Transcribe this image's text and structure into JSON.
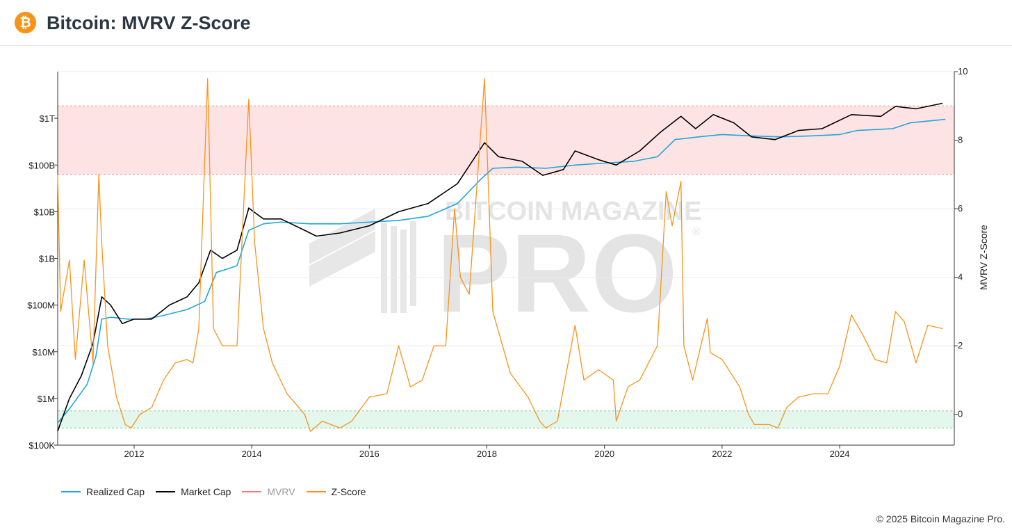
{
  "header": {
    "title": "Bitcoin: MVRV Z-Score",
    "logo_symbol": "₿",
    "logo_color": "#f7931a"
  },
  "watermark": {
    "line1": "BITCOIN MAGAZINE",
    "line2": "PRO",
    "mark": "®"
  },
  "legend": [
    {
      "label": "Realized Cap",
      "color": "#1ea7dc"
    },
    {
      "label": "Market Cap",
      "color": "#000000"
    },
    {
      "label": "MVRV",
      "color": "#f08080"
    },
    {
      "label": "Z-Score",
      "color": "#f7931a"
    }
  ],
  "footer": {
    "copyright": "© 2025 Bitcoin Magazine Pro."
  },
  "chart_data": {
    "type": "line",
    "x_axis": {
      "ticks": [
        "2012",
        "2014",
        "2016",
        "2018",
        "2020",
        "2022",
        "2024"
      ],
      "range": [
        2010.7,
        2025.95
      ]
    },
    "y_left": {
      "scale": "log",
      "ticks": [
        "$100K",
        "$1M",
        "$10M",
        "$100M",
        "$1B",
        "$10B",
        "$100B",
        "$1T"
      ],
      "range": [
        100000,
        10000000000000
      ]
    },
    "y_right": {
      "label": "MVRV Z-Score",
      "ticks": [
        0,
        2,
        4,
        6,
        8,
        10
      ],
      "range": [
        -0.9,
        10
      ]
    },
    "bands": [
      {
        "name": "red zone",
        "from": 7,
        "to": 9,
        "color": "#fde3e3"
      },
      {
        "name": "green zone",
        "from": -0.4,
        "to": 0.1,
        "color": "#e3f7ec"
      }
    ],
    "series": [
      {
        "name": "Realized Cap",
        "color": "#1ea7dc",
        "axis": "left",
        "points": [
          [
            2010.7,
            300000
          ],
          [
            2010.9,
            600000
          ],
          [
            2011.2,
            2000000
          ],
          [
            2011.35,
            8000000
          ],
          [
            2011.45,
            50000000
          ],
          [
            2011.6,
            55000000
          ],
          [
            2011.9,
            50000000
          ],
          [
            2012.2,
            50000000
          ],
          [
            2012.5,
            60000000
          ],
          [
            2012.9,
            80000000
          ],
          [
            2013.2,
            120000000
          ],
          [
            2013.4,
            500000000
          ],
          [
            2013.6,
            600000000
          ],
          [
            2013.75,
            700000000
          ],
          [
            2013.95,
            4000000000
          ],
          [
            2014.2,
            5500000000
          ],
          [
            2014.5,
            6000000000
          ],
          [
            2015.0,
            5500000000
          ],
          [
            2015.5,
            5500000000
          ],
          [
            2016.0,
            6000000000
          ],
          [
            2016.5,
            6500000000
          ],
          [
            2017.0,
            8000000000
          ],
          [
            2017.5,
            15000000000
          ],
          [
            2017.9,
            50000000000
          ],
          [
            2018.1,
            85000000000
          ],
          [
            2018.5,
            90000000000
          ],
          [
            2019.0,
            85000000000
          ],
          [
            2019.5,
            100000000000
          ],
          [
            2020.0,
            110000000000
          ],
          [
            2020.5,
            120000000000
          ],
          [
            2020.9,
            150000000000
          ],
          [
            2021.2,
            350000000000
          ],
          [
            2021.6,
            400000000000
          ],
          [
            2022.0,
            450000000000
          ],
          [
            2022.5,
            420000000000
          ],
          [
            2023.0,
            400000000000
          ],
          [
            2023.5,
            420000000000
          ],
          [
            2024.0,
            450000000000
          ],
          [
            2024.3,
            550000000000
          ],
          [
            2024.9,
            600000000000
          ],
          [
            2025.2,
            800000000000
          ],
          [
            2025.8,
            950000000000
          ]
        ]
      },
      {
        "name": "Market Cap",
        "color": "#000000",
        "axis": "left",
        "points": [
          [
            2010.7,
            200000
          ],
          [
            2010.9,
            1000000
          ],
          [
            2011.1,
            3000000
          ],
          [
            2011.3,
            15000000
          ],
          [
            2011.45,
            150000000
          ],
          [
            2011.6,
            100000000
          ],
          [
            2011.8,
            40000000
          ],
          [
            2012.0,
            50000000
          ],
          [
            2012.3,
            50000000
          ],
          [
            2012.6,
            100000000
          ],
          [
            2012.9,
            150000000
          ],
          [
            2013.1,
            300000000
          ],
          [
            2013.3,
            1500000000
          ],
          [
            2013.5,
            1000000000
          ],
          [
            2013.75,
            1500000000
          ],
          [
            2013.95,
            12000000000
          ],
          [
            2014.2,
            7000000000
          ],
          [
            2014.5,
            7000000000
          ],
          [
            2014.9,
            4000000000
          ],
          [
            2015.1,
            3000000000
          ],
          [
            2015.5,
            3500000000
          ],
          [
            2016.0,
            5000000000
          ],
          [
            2016.5,
            10000000000
          ],
          [
            2017.0,
            15000000000
          ],
          [
            2017.5,
            40000000000
          ],
          [
            2017.96,
            300000000000
          ],
          [
            2018.2,
            150000000000
          ],
          [
            2018.6,
            120000000000
          ],
          [
            2018.95,
            60000000000
          ],
          [
            2019.3,
            80000000000
          ],
          [
            2019.5,
            200000000000
          ],
          [
            2019.9,
            130000000000
          ],
          [
            2020.2,
            100000000000
          ],
          [
            2020.6,
            200000000000
          ],
          [
            2020.95,
            500000000000
          ],
          [
            2021.3,
            1100000000000
          ],
          [
            2021.55,
            600000000000
          ],
          [
            2021.85,
            1200000000000
          ],
          [
            2022.2,
            800000000000
          ],
          [
            2022.5,
            400000000000
          ],
          [
            2022.9,
            350000000000
          ],
          [
            2023.3,
            550000000000
          ],
          [
            2023.7,
            600000000000
          ],
          [
            2024.2,
            1200000000000
          ],
          [
            2024.7,
            1100000000000
          ],
          [
            2024.95,
            1800000000000
          ],
          [
            2025.3,
            1600000000000
          ],
          [
            2025.75,
            2100000000000
          ]
        ]
      },
      {
        "name": "Z-Score",
        "color": "#f7931a",
        "axis": "right",
        "points": [
          [
            2010.7,
            7.0
          ],
          [
            2010.75,
            3.0
          ],
          [
            2010.9,
            4.5
          ],
          [
            2011.0,
            1.6
          ],
          [
            2011.15,
            4.5
          ],
          [
            2011.3,
            1.5
          ],
          [
            2011.4,
            7.0
          ],
          [
            2011.45,
            5.0
          ],
          [
            2011.55,
            2.0
          ],
          [
            2011.7,
            0.5
          ],
          [
            2011.85,
            -0.3
          ],
          [
            2011.95,
            -0.4
          ],
          [
            2012.1,
            0.0
          ],
          [
            2012.3,
            0.2
          ],
          [
            2012.5,
            1.0
          ],
          [
            2012.7,
            1.5
          ],
          [
            2012.9,
            1.6
          ],
          [
            2013.0,
            1.5
          ],
          [
            2013.1,
            2.5
          ],
          [
            2013.25,
            9.8
          ],
          [
            2013.35,
            2.5
          ],
          [
            2013.5,
            2.0
          ],
          [
            2013.75,
            2.0
          ],
          [
            2013.95,
            9.2
          ],
          [
            2014.05,
            5.0
          ],
          [
            2014.2,
            2.5
          ],
          [
            2014.35,
            1.5
          ],
          [
            2014.6,
            0.6
          ],
          [
            2014.9,
            0.0
          ],
          [
            2015.0,
            -0.5
          ],
          [
            2015.2,
            -0.2
          ],
          [
            2015.5,
            -0.4
          ],
          [
            2015.7,
            -0.2
          ],
          [
            2016.0,
            0.5
          ],
          [
            2016.3,
            0.6
          ],
          [
            2016.5,
            2.0
          ],
          [
            2016.7,
            0.8
          ],
          [
            2016.9,
            1.0
          ],
          [
            2017.1,
            2.0
          ],
          [
            2017.3,
            2.0
          ],
          [
            2017.45,
            6.0
          ],
          [
            2017.55,
            4.0
          ],
          [
            2017.7,
            3.5
          ],
          [
            2017.96,
            9.8
          ],
          [
            2018.1,
            3.0
          ],
          [
            2018.4,
            1.2
          ],
          [
            2018.7,
            0.5
          ],
          [
            2018.9,
            -0.2
          ],
          [
            2019.0,
            -0.4
          ],
          [
            2019.2,
            -0.2
          ],
          [
            2019.5,
            2.6
          ],
          [
            2019.65,
            1.0
          ],
          [
            2019.9,
            1.3
          ],
          [
            2020.15,
            1.0
          ],
          [
            2020.2,
            -0.2
          ],
          [
            2020.4,
            0.8
          ],
          [
            2020.6,
            1.0
          ],
          [
            2020.9,
            2.0
          ],
          [
            2021.05,
            6.5
          ],
          [
            2021.15,
            5.5
          ],
          [
            2021.3,
            6.8
          ],
          [
            2021.35,
            2.0
          ],
          [
            2021.5,
            1.0
          ],
          [
            2021.75,
            2.8
          ],
          [
            2021.8,
            1.8
          ],
          [
            2022.0,
            1.6
          ],
          [
            2022.3,
            0.8
          ],
          [
            2022.45,
            0.0
          ],
          [
            2022.55,
            -0.3
          ],
          [
            2022.8,
            -0.3
          ],
          [
            2022.95,
            -0.4
          ],
          [
            2023.1,
            0.2
          ],
          [
            2023.3,
            0.5
          ],
          [
            2023.55,
            0.6
          ],
          [
            2023.8,
            0.6
          ],
          [
            2024.0,
            1.4
          ],
          [
            2024.2,
            2.9
          ],
          [
            2024.4,
            2.3
          ],
          [
            2024.6,
            1.6
          ],
          [
            2024.8,
            1.5
          ],
          [
            2024.95,
            3.0
          ],
          [
            2025.1,
            2.7
          ],
          [
            2025.3,
            1.5
          ],
          [
            2025.5,
            2.6
          ],
          [
            2025.75,
            2.5
          ]
        ]
      }
    ]
  }
}
